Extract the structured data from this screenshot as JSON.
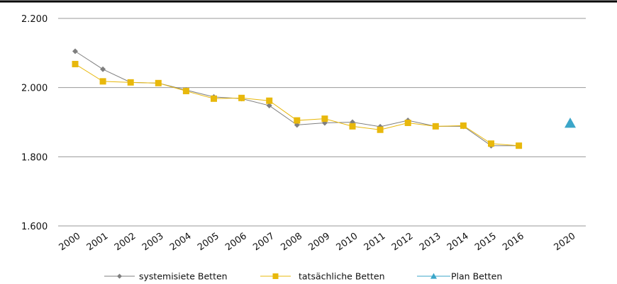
{
  "chart_data": {
    "type": "line",
    "title": "",
    "xlabel": "",
    "ylabel": "",
    "categories": [
      "2000",
      "2001",
      "2002",
      "2003",
      "2004",
      "2005",
      "2006",
      "2007",
      "2008",
      "2009",
      "2010",
      "2011",
      "2012",
      "2013",
      "2014",
      "2015",
      "2016",
      "2020"
    ],
    "y_ticks": [
      "1.600",
      "1.800",
      "2.000",
      "2.200"
    ],
    "ylim": [
      1600,
      2200
    ],
    "grid": true,
    "legend_position": "bottom",
    "series": [
      {
        "name": "systemisiete Betten",
        "color": "#7f7f7f",
        "marker": "diamond",
        "values": [
          2105,
          2053,
          2015,
          2013,
          1993,
          1973,
          1968,
          1948,
          1892,
          1898,
          1900,
          1887,
          1905,
          1888,
          1888,
          1832,
          1832,
          null
        ]
      },
      {
        "name": "tatsächliche Betten",
        "color": "#e8b80c",
        "marker": "square",
        "values": [
          2068,
          2018,
          2015,
          2013,
          1990,
          1968,
          1970,
          1962,
          1905,
          1910,
          1888,
          1878,
          1898,
          1888,
          1890,
          1838,
          1832,
          null
        ]
      },
      {
        "name": "Plan Betten",
        "color": "#3ba6c9",
        "marker": "triangle",
        "values": [
          null,
          null,
          null,
          null,
          null,
          null,
          null,
          null,
          null,
          null,
          null,
          null,
          null,
          null,
          null,
          null,
          null,
          1897
        ]
      }
    ]
  }
}
